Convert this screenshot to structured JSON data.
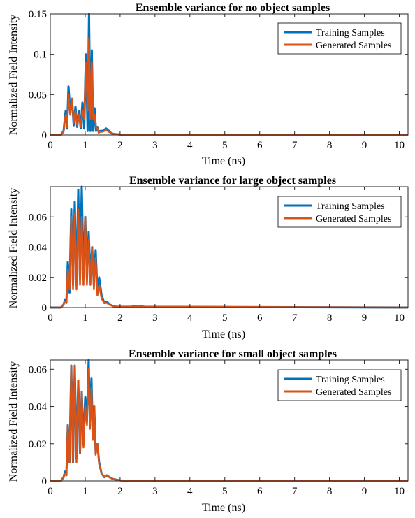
{
  "colors": {
    "training": "#0072BD",
    "generated": "#D95319"
  },
  "chart_data": [
    {
      "type": "line",
      "title": "Ensemble variance for no object samples",
      "xlabel": "Time (ns)",
      "ylabel": "Normalized Field Intensity",
      "xlim": [
        0,
        10.25
      ],
      "ylim": [
        0,
        0.15
      ],
      "xticks": [
        "0",
        "1",
        "2",
        "3",
        "4",
        "5",
        "6",
        "7",
        "8",
        "9",
        "10"
      ],
      "yticks": [
        "0",
        "0.05",
        "0.1",
        "0.15"
      ],
      "legend": "top-right",
      "series": [
        {
          "name": "Training Samples",
          "x": [
            0,
            0.3,
            0.38,
            0.44,
            0.48,
            0.52,
            0.57,
            0.62,
            0.67,
            0.72,
            0.77,
            0.82,
            0.87,
            0.92,
            0.97,
            1.02,
            1.07,
            1.11,
            1.15,
            1.19,
            1.23,
            1.27,
            1.31,
            1.35,
            1.39,
            1.43,
            1.5,
            1.6,
            1.68,
            1.75,
            1.85,
            2.0,
            2.3,
            10.25
          ],
          "y": [
            0,
            0,
            0.005,
            0.03,
            0.008,
            0.06,
            0.03,
            0.045,
            0.012,
            0.035,
            0.01,
            0.03,
            0.008,
            0.04,
            0.008,
            0.1,
            0.005,
            0.155,
            0.005,
            0.105,
            0.005,
            0.033,
            0.005,
            0.01,
            0.003,
            0.005,
            0.005,
            0.008,
            0.005,
            0.002,
            0.001,
            0.0005,
            0,
            0
          ]
        },
        {
          "name": "Generated Samples",
          "x": [
            0,
            0.3,
            0.38,
            0.44,
            0.48,
            0.52,
            0.57,
            0.62,
            0.67,
            0.72,
            0.77,
            0.82,
            0.87,
            0.92,
            0.97,
            1.02,
            1.07,
            1.11,
            1.15,
            1.19,
            1.23,
            1.27,
            1.31,
            1.35,
            1.39,
            1.43,
            1.5,
            1.6,
            1.68,
            1.75,
            1.85,
            2.0,
            2.3,
            10.25
          ],
          "y": [
            0,
            0,
            0.004,
            0.025,
            0.01,
            0.05,
            0.025,
            0.045,
            0.015,
            0.03,
            0.012,
            0.025,
            0.01,
            0.03,
            0.02,
            0.09,
            0.03,
            0.12,
            0.02,
            0.09,
            0.02,
            0.025,
            0.01,
            0.008,
            0.003,
            0.004,
            0.004,
            0.006,
            0.004,
            0.002,
            0.001,
            0.0005,
            0,
            0
          ]
        }
      ]
    },
    {
      "type": "line",
      "title": "Ensemble variance for large object samples",
      "xlabel": "Time (ns)",
      "ylabel": "Normalized Field Intensity",
      "xlim": [
        0,
        10.25
      ],
      "ylim": [
        0,
        0.08
      ],
      "xticks": [
        "0",
        "1",
        "2",
        "3",
        "4",
        "5",
        "6",
        "7",
        "8",
        "9",
        "10"
      ],
      "yticks": [
        "0",
        "0.02",
        "0.04",
        "0.06"
      ],
      "legend": "top-right",
      "series": [
        {
          "name": "Training Samples",
          "x": [
            0,
            0.3,
            0.38,
            0.42,
            0.46,
            0.5,
            0.55,
            0.6,
            0.65,
            0.7,
            0.75,
            0.8,
            0.85,
            0.9,
            0.95,
            1.0,
            1.05,
            1.1,
            1.15,
            1.2,
            1.25,
            1.3,
            1.35,
            1.4,
            1.47,
            1.55,
            1.62,
            1.7,
            1.8,
            1.9,
            2.0,
            2.3,
            2.5,
            2.7,
            10.25
          ],
          "y": [
            0,
            0,
            0.002,
            0.005,
            0.003,
            0.03,
            0.01,
            0.065,
            0.015,
            0.07,
            0.015,
            0.078,
            0.02,
            0.083,
            0.02,
            0.06,
            0.02,
            0.05,
            0.02,
            0.04,
            0.015,
            0.038,
            0.01,
            0.02,
            0.008,
            0.003,
            0.004,
            0.002,
            0.001,
            0.0005,
            0.0005,
            0.0005,
            0.001,
            0.0005,
            0
          ]
        },
        {
          "name": "Generated Samples",
          "x": [
            0,
            0.3,
            0.38,
            0.42,
            0.46,
            0.5,
            0.55,
            0.6,
            0.65,
            0.7,
            0.75,
            0.8,
            0.85,
            0.9,
            0.95,
            1.0,
            1.05,
            1.1,
            1.15,
            1.2,
            1.25,
            1.3,
            1.35,
            1.4,
            1.47,
            1.55,
            1.62,
            1.7,
            1.8,
            1.9,
            2.0,
            2.3,
            2.5,
            2.7,
            10.25
          ],
          "y": [
            0,
            0,
            0.002,
            0.004,
            0.003,
            0.025,
            0.012,
            0.06,
            0.012,
            0.062,
            0.012,
            0.065,
            0.015,
            0.06,
            0.015,
            0.06,
            0.015,
            0.045,
            0.015,
            0.04,
            0.012,
            0.033,
            0.008,
            0.015,
            0.006,
            0.003,
            0.003,
            0.002,
            0.001,
            0.0005,
            0.0005,
            0.0005,
            0.0008,
            0.0005,
            0
          ]
        }
      ]
    },
    {
      "type": "line",
      "title": "Ensemble variance for small object samples",
      "xlabel": "Time (ns)",
      "ylabel": "Normalized Field Intensity",
      "xlim": [
        0,
        10.25
      ],
      "ylim": [
        0,
        0.065
      ],
      "xticks": [
        "0",
        "1",
        "2",
        "3",
        "4",
        "5",
        "6",
        "7",
        "8",
        "9",
        "10"
      ],
      "yticks": [
        "0",
        "0.02",
        "0.04",
        "0.06"
      ],
      "legend": "top-right",
      "series": [
        {
          "name": "Training Samples",
          "x": [
            0,
            0.3,
            0.38,
            0.42,
            0.46,
            0.5,
            0.55,
            0.6,
            0.65,
            0.7,
            0.75,
            0.8,
            0.85,
            0.9,
            0.95,
            1.0,
            1.05,
            1.1,
            1.14,
            1.18,
            1.22,
            1.26,
            1.3,
            1.35,
            1.4,
            1.47,
            1.55,
            1.62,
            1.7,
            1.8,
            2.0,
            2.3,
            10.25
          ],
          "y": [
            0,
            0,
            0.002,
            0.005,
            0.003,
            0.03,
            0.01,
            0.062,
            0.01,
            0.062,
            0.012,
            0.054,
            0.015,
            0.048,
            0.02,
            0.045,
            0.032,
            0.065,
            0.03,
            0.055,
            0.025,
            0.04,
            0.015,
            0.02,
            0.01,
            0.004,
            0.002,
            0.003,
            0.002,
            0.001,
            0.0003,
            0,
            0
          ]
        },
        {
          "name": "Generated Samples",
          "x": [
            0,
            0.3,
            0.38,
            0.42,
            0.46,
            0.5,
            0.55,
            0.6,
            0.65,
            0.7,
            0.75,
            0.8,
            0.85,
            0.9,
            0.95,
            1.0,
            1.05,
            1.1,
            1.14,
            1.18,
            1.22,
            1.26,
            1.3,
            1.35,
            1.4,
            1.47,
            1.55,
            1.62,
            1.7,
            1.8,
            2.0,
            2.3,
            10.25
          ],
          "y": [
            0,
            0,
            0.002,
            0.004,
            0.003,
            0.03,
            0.01,
            0.062,
            0.01,
            0.062,
            0.01,
            0.054,
            0.015,
            0.048,
            0.018,
            0.04,
            0.03,
            0.06,
            0.028,
            0.05,
            0.022,
            0.04,
            0.014,
            0.02,
            0.009,
            0.004,
            0.002,
            0.003,
            0.002,
            0.001,
            0.0003,
            0,
            0
          ]
        }
      ]
    }
  ]
}
